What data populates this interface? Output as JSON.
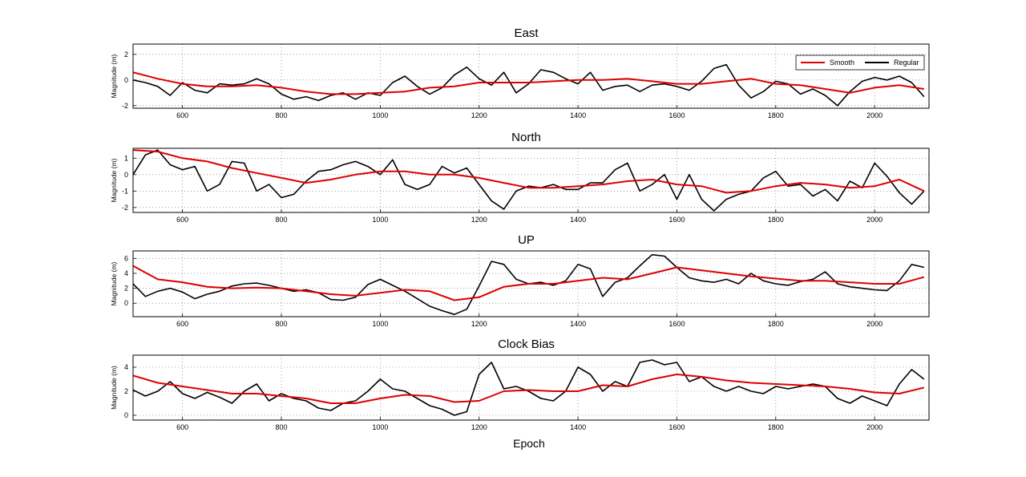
{
  "figure": {
    "xlabel": "Epoch"
  },
  "legend": {
    "entries": [
      "Smooth",
      "Regular"
    ],
    "placement": "top-right of first panel"
  },
  "colors": {
    "smooth": "#dd0000",
    "regular": "#000000",
    "grid": "#666666"
  },
  "chart_data": [
    {
      "type": "line",
      "title": "East",
      "ylabel": "Magnitude (m)",
      "xlim": [
        500,
        2110
      ],
      "ylim": [
        -2.2,
        2.8
      ],
      "xticks": [
        600,
        800,
        1000,
        1200,
        1400,
        1600,
        1800,
        2000
      ],
      "yticks": [
        -2,
        0,
        2
      ],
      "grid": true,
      "series": [
        {
          "name": "Smooth",
          "color": "#dd0000",
          "x": [
            500,
            550,
            600,
            650,
            700,
            750,
            800,
            850,
            900,
            950,
            1000,
            1050,
            1100,
            1150,
            1200,
            1250,
            1300,
            1350,
            1400,
            1450,
            1500,
            1550,
            1600,
            1650,
            1700,
            1750,
            1800,
            1850,
            1900,
            1950,
            2000,
            2050,
            2100
          ],
          "y": [
            0.6,
            0.1,
            -0.3,
            -0.5,
            -0.5,
            -0.4,
            -0.6,
            -0.9,
            -1.1,
            -1.1,
            -1.0,
            -0.9,
            -0.6,
            -0.5,
            -0.2,
            -0.2,
            -0.2,
            -0.1,
            0.0,
            0.0,
            0.1,
            -0.1,
            -0.3,
            -0.3,
            -0.1,
            0.1,
            -0.3,
            -0.4,
            -0.7,
            -1.0,
            -0.6,
            -0.4,
            -0.7
          ]
        },
        {
          "name": "Regular",
          "color": "#000000",
          "x": [
            500,
            525,
            550,
            575,
            600,
            625,
            650,
            675,
            700,
            725,
            750,
            775,
            800,
            825,
            850,
            875,
            900,
            925,
            950,
            975,
            1000,
            1025,
            1050,
            1075,
            1100,
            1125,
            1150,
            1175,
            1200,
            1225,
            1250,
            1275,
            1300,
            1325,
            1350,
            1375,
            1400,
            1425,
            1450,
            1475,
            1500,
            1525,
            1550,
            1575,
            1600,
            1625,
            1650,
            1675,
            1700,
            1725,
            1750,
            1775,
            1800,
            1825,
            1850,
            1875,
            1900,
            1925,
            1950,
            1975,
            2000,
            2025,
            2050,
            2075,
            2100
          ],
          "y": [
            0.0,
            -0.2,
            -0.5,
            -1.2,
            -0.2,
            -0.8,
            -1.0,
            -0.3,
            -0.4,
            -0.3,
            0.1,
            -0.3,
            -1.1,
            -1.5,
            -1.3,
            -1.6,
            -1.2,
            -1.0,
            -1.5,
            -1.0,
            -1.2,
            -0.2,
            0.3,
            -0.5,
            -1.1,
            -0.6,
            0.4,
            1.0,
            0.1,
            -0.4,
            0.6,
            -1.0,
            -0.3,
            0.8,
            0.6,
            0.1,
            -0.3,
            0.6,
            -0.8,
            -0.5,
            -0.4,
            -0.9,
            -0.4,
            -0.3,
            -0.5,
            -0.8,
            -0.1,
            0.9,
            1.2,
            -0.4,
            -1.4,
            -0.9,
            -0.1,
            -0.3,
            -1.1,
            -0.7,
            -1.2,
            -2.0,
            -0.9,
            -0.1,
            0.2,
            0.0,
            0.3,
            -0.2,
            -1.3
          ]
        }
      ]
    },
    {
      "type": "line",
      "title": "North",
      "ylabel": "Magnitude (m)",
      "xlim": [
        500,
        2110
      ],
      "ylim": [
        -2.3,
        1.6
      ],
      "xticks": [
        600,
        800,
        1000,
        1200,
        1400,
        1600,
        1800,
        2000
      ],
      "yticks": [
        -2,
        -1,
        0,
        1
      ],
      "grid": true,
      "series": [
        {
          "name": "Smooth",
          "color": "#dd0000",
          "x": [
            500,
            550,
            600,
            650,
            700,
            750,
            800,
            850,
            900,
            950,
            1000,
            1050,
            1100,
            1150,
            1200,
            1250,
            1300,
            1350,
            1400,
            1450,
            1500,
            1550,
            1600,
            1650,
            1700,
            1750,
            1800,
            1850,
            1900,
            1950,
            2000,
            2050,
            2100
          ],
          "y": [
            1.5,
            1.4,
            1.0,
            0.8,
            0.4,
            0.1,
            -0.2,
            -0.5,
            -0.3,
            0.0,
            0.2,
            0.2,
            0.0,
            0.0,
            -0.2,
            -0.5,
            -0.8,
            -0.8,
            -0.7,
            -0.6,
            -0.4,
            -0.3,
            -0.6,
            -0.7,
            -1.1,
            -1.0,
            -0.7,
            -0.5,
            -0.6,
            -0.8,
            -0.7,
            -0.3,
            -1.0
          ]
        },
        {
          "name": "Regular",
          "color": "#000000",
          "x": [
            500,
            525,
            550,
            575,
            600,
            625,
            650,
            675,
            700,
            725,
            750,
            775,
            800,
            825,
            850,
            875,
            900,
            925,
            950,
            975,
            1000,
            1025,
            1050,
            1075,
            1100,
            1125,
            1150,
            1175,
            1200,
            1225,
            1250,
            1275,
            1300,
            1325,
            1350,
            1375,
            1400,
            1425,
            1450,
            1475,
            1500,
            1525,
            1550,
            1575,
            1600,
            1625,
            1650,
            1675,
            1700,
            1725,
            1750,
            1775,
            1800,
            1825,
            1850,
            1875,
            1900,
            1925,
            1950,
            1975,
            2000,
            2025,
            2050,
            2075,
            2100
          ],
          "y": [
            0.0,
            1.2,
            1.5,
            0.6,
            0.3,
            0.5,
            -1.0,
            -0.6,
            0.8,
            0.7,
            -1.0,
            -0.6,
            -1.4,
            -1.2,
            -0.4,
            0.2,
            0.3,
            0.6,
            0.8,
            0.5,
            0.0,
            0.9,
            -0.6,
            -0.9,
            -0.6,
            0.5,
            0.1,
            0.4,
            -0.6,
            -1.6,
            -2.1,
            -1.0,
            -0.7,
            -0.8,
            -0.6,
            -0.9,
            -0.9,
            -0.5,
            -0.5,
            0.3,
            0.7,
            -1.0,
            -0.6,
            0.0,
            -1.5,
            0.0,
            -1.5,
            -2.2,
            -1.5,
            -1.2,
            -1.0,
            -0.2,
            0.2,
            -0.7,
            -0.6,
            -1.3,
            -0.9,
            -1.6,
            -0.4,
            -0.8,
            0.7,
            -0.1,
            -1.1,
            -1.8,
            -1.0
          ]
        }
      ]
    },
    {
      "type": "line",
      "title": "UP",
      "ylabel": "Magnitude (m)",
      "xlim": [
        500,
        2110
      ],
      "ylim": [
        -1.8,
        7.0
      ],
      "xticks": [
        600,
        800,
        1000,
        1200,
        1400,
        1600,
        1800,
        2000
      ],
      "yticks": [
        0,
        2,
        4,
        6
      ],
      "grid": true,
      "series": [
        {
          "name": "Smooth",
          "color": "#dd0000",
          "x": [
            500,
            550,
            600,
            650,
            700,
            750,
            800,
            850,
            900,
            950,
            1000,
            1050,
            1100,
            1150,
            1200,
            1250,
            1300,
            1350,
            1400,
            1450,
            1500,
            1550,
            1600,
            1650,
            1700,
            1750,
            1800,
            1850,
            1900,
            1950,
            2000,
            2050,
            2100
          ],
          "y": [
            5.0,
            3.2,
            2.8,
            2.2,
            2.0,
            2.1,
            2.0,
            1.6,
            1.2,
            1.0,
            1.4,
            1.8,
            1.6,
            0.4,
            0.8,
            2.2,
            2.6,
            2.6,
            3.0,
            3.4,
            3.2,
            4.0,
            4.8,
            4.4,
            4.0,
            3.6,
            3.3,
            3.0,
            3.0,
            2.8,
            2.6,
            2.6,
            3.5
          ]
        },
        {
          "name": "Regular",
          "color": "#000000",
          "x": [
            500,
            525,
            550,
            575,
            600,
            625,
            650,
            675,
            700,
            725,
            750,
            775,
            800,
            825,
            850,
            875,
            900,
            925,
            950,
            975,
            1000,
            1025,
            1050,
            1075,
            1100,
            1125,
            1150,
            1175,
            1200,
            1225,
            1250,
            1275,
            1300,
            1325,
            1350,
            1375,
            1400,
            1425,
            1450,
            1475,
            1500,
            1525,
            1550,
            1575,
            1600,
            1625,
            1650,
            1675,
            1700,
            1725,
            1750,
            1775,
            1800,
            1825,
            1850,
            1875,
            1900,
            1925,
            1950,
            1975,
            2000,
            2025,
            2050,
            2075,
            2100
          ],
          "y": [
            2.6,
            0.9,
            1.6,
            2.0,
            1.5,
            0.6,
            1.2,
            1.6,
            2.3,
            2.6,
            2.7,
            2.4,
            2.0,
            1.6,
            1.8,
            1.4,
            0.5,
            0.4,
            0.8,
            2.5,
            3.2,
            2.4,
            1.6,
            0.6,
            -0.4,
            -1.0,
            -1.5,
            -0.8,
            2.3,
            5.6,
            5.2,
            3.2,
            2.6,
            2.8,
            2.4,
            3.0,
            5.2,
            4.6,
            0.9,
            2.8,
            3.4,
            5.0,
            6.5,
            6.3,
            4.8,
            3.4,
            3.0,
            2.8,
            3.2,
            2.6,
            4.0,
            3.0,
            2.6,
            2.4,
            2.9,
            3.2,
            4.2,
            2.6,
            2.2,
            2.0,
            1.8,
            1.7,
            3.0,
            5.2,
            4.8
          ]
        }
      ]
    },
    {
      "type": "line",
      "title": "Clock Bias",
      "ylabel": "Magnitude (m)",
      "xlim": [
        500,
        2110
      ],
      "ylim": [
        -0.4,
        5.0
      ],
      "xticks": [
        600,
        800,
        1000,
        1200,
        1400,
        1600,
        1800,
        2000
      ],
      "yticks": [
        0,
        2,
        4
      ],
      "grid": true,
      "series": [
        {
          "name": "Smooth",
          "color": "#dd0000",
          "x": [
            500,
            550,
            600,
            650,
            700,
            750,
            800,
            850,
            900,
            950,
            1000,
            1050,
            1100,
            1150,
            1200,
            1250,
            1300,
            1350,
            1400,
            1450,
            1500,
            1550,
            1600,
            1650,
            1700,
            1750,
            1800,
            1850,
            1900,
            1950,
            2000,
            2050,
            2100
          ],
          "y": [
            3.3,
            2.7,
            2.4,
            2.1,
            1.8,
            1.8,
            1.6,
            1.4,
            1.0,
            1.0,
            1.4,
            1.7,
            1.6,
            1.1,
            1.2,
            2.0,
            2.1,
            2.0,
            2.0,
            2.5,
            2.4,
            3.0,
            3.4,
            3.2,
            2.9,
            2.7,
            2.6,
            2.5,
            2.4,
            2.2,
            1.9,
            1.8,
            2.3
          ]
        },
        {
          "name": "Regular",
          "color": "#000000",
          "x": [
            500,
            525,
            550,
            575,
            600,
            625,
            650,
            675,
            700,
            725,
            750,
            775,
            800,
            825,
            850,
            875,
            900,
            925,
            950,
            975,
            1000,
            1025,
            1050,
            1075,
            1100,
            1125,
            1150,
            1175,
            1200,
            1225,
            1250,
            1275,
            1300,
            1325,
            1350,
            1375,
            1400,
            1425,
            1450,
            1475,
            1500,
            1525,
            1550,
            1575,
            1600,
            1625,
            1650,
            1675,
            1700,
            1725,
            1750,
            1775,
            1800,
            1825,
            1850,
            1875,
            1900,
            1925,
            1950,
            1975,
            2000,
            2025,
            2050,
            2075,
            2100
          ],
          "y": [
            2.1,
            1.6,
            2.0,
            2.8,
            1.8,
            1.4,
            1.9,
            1.5,
            1.0,
            2.0,
            2.6,
            1.2,
            1.8,
            1.4,
            1.2,
            0.6,
            0.4,
            1.0,
            1.2,
            2.0,
            3.0,
            2.2,
            2.0,
            1.4,
            0.8,
            0.5,
            0.0,
            0.3,
            3.4,
            4.4,
            2.2,
            2.4,
            2.0,
            1.4,
            1.2,
            2.0,
            4.0,
            3.4,
            2.0,
            2.8,
            2.4,
            4.4,
            4.6,
            4.2,
            4.4,
            2.8,
            3.2,
            2.4,
            2.0,
            2.4,
            2.0,
            1.8,
            2.4,
            2.2,
            2.4,
            2.6,
            2.4,
            1.4,
            1.0,
            1.6,
            1.2,
            0.8,
            2.6,
            3.8,
            3.0
          ]
        }
      ]
    }
  ]
}
